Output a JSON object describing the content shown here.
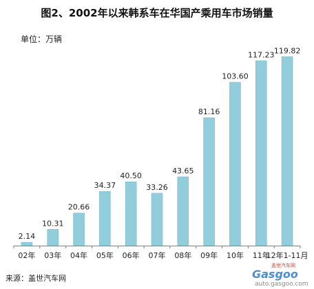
{
  "title": "图2、2002年以来韩系车在华国产乘用车市场销量",
  "unit_label": "单位：万辆",
  "source": "来源：盖世汽车网",
  "watermark": {
    "chinese": "盖世汽车网",
    "brand": "Gasgoo",
    "url": "auto.gasgoo.com"
  },
  "colors": {
    "bar": "#92CDDC",
    "bar_edge": "#6FB4C8",
    "axis": "#808080",
    "text": "#222222"
  },
  "chart_data": {
    "type": "bar",
    "title": "图2、2002年以来韩系车在华国产乘用车市场销量",
    "ylabel": "单位：万辆",
    "xlabel": "",
    "categories": [
      "02年",
      "03年",
      "04年",
      "05年",
      "06年",
      "07年",
      "08年",
      "09年",
      "10年",
      "11年",
      "12年1-11月"
    ],
    "values": [
      2.14,
      10.31,
      20.66,
      34.37,
      40.5,
      33.26,
      43.65,
      81.16,
      103.6,
      117.23,
      119.82
    ],
    "value_labels": [
      "2.14",
      "10.31",
      "20.66",
      "34.37",
      "40.50",
      "33.26",
      "43.65",
      "81.16",
      "103.60",
      "117.23",
      "119.82"
    ],
    "ylim": [
      0,
      120
    ],
    "grid": false,
    "legend": "none"
  }
}
